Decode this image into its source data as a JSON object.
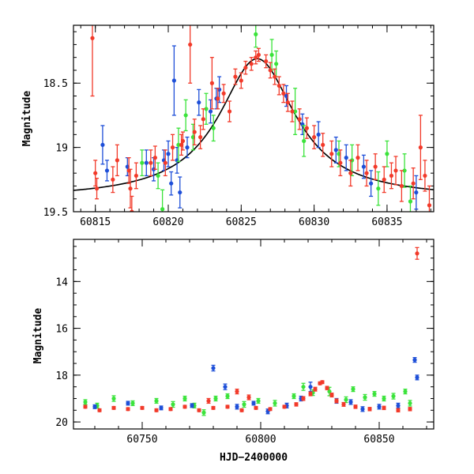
{
  "colors": {
    "blue": "#1e4fd8",
    "green": "#3be33b",
    "red": "#f23a2a",
    "axis": "#000000",
    "model": "#000000"
  },
  "chart_data": [
    {
      "type": "scatter",
      "panel": "top",
      "xlabel": "",
      "ylabel": "Magnitude",
      "xlim": [
        60813.5,
        60838.2
      ],
      "ylim": [
        19.5,
        18.05
      ],
      "y_inverted": true,
      "xticks_major": [
        60815,
        60820,
        60825,
        60830,
        60835
      ],
      "xtick_labels": [
        "60815",
        "60820",
        "60825",
        "60830",
        "60835"
      ],
      "yticks_major": [
        18.5,
        19,
        19.5
      ],
      "ytick_labels": [
        "18.5",
        "19",
        "19.5"
      ],
      "model_curve": {
        "type": "line",
        "peak_x": 60826.1,
        "peak_mag": 18.31,
        "baseline_mag": 19.4,
        "width_days": 3.2
      },
      "series": [
        {
          "color": "blue",
          "points": [
            [
              60815.5,
              18.98,
              0.15
            ],
            [
              60815.8,
              19.18,
              0.08
            ],
            [
              60817.2,
              19.15,
              0.07
            ],
            [
              60818.5,
              19.12,
              0.1
            ],
            [
              60819.0,
              19.17,
              0.09
            ],
            [
              60819.7,
              19.1,
              0.08
            ],
            [
              60820.0,
              19.05,
              0.1
            ],
            [
              60820.2,
              19.28,
              0.09
            ],
            [
              60820.4,
              18.48,
              0.27
            ],
            [
              60820.6,
              19.1,
              0.1
            ],
            [
              60820.8,
              19.35,
              0.12
            ],
            [
              60821.3,
              19.0,
              0.08
            ],
            [
              60822.1,
              18.65,
              0.1
            ],
            [
              60822.9,
              18.72,
              0.09
            ],
            [
              60823.3,
              18.62,
              0.08
            ],
            [
              60823.5,
              18.55,
              0.1
            ],
            [
              60828.1,
              18.6,
              0.08
            ],
            [
              60829.2,
              18.82,
              0.08
            ],
            [
              60830.3,
              18.9,
              0.1
            ],
            [
              60831.5,
              19.02,
              0.1
            ],
            [
              60832.2,
              19.08,
              0.1
            ],
            [
              60833.4,
              19.15,
              0.09
            ],
            [
              60833.9,
              19.28,
              0.1
            ],
            [
              60837.0,
              19.35,
              0.13
            ]
          ]
        },
        {
          "color": "green",
          "points": [
            [
              60818.2,
              19.12,
              0.1
            ],
            [
              60819.3,
              19.22,
              0.1
            ],
            [
              60819.6,
              19.48,
              0.15
            ],
            [
              60820.7,
              18.98,
              0.13
            ],
            [
              60821.2,
              18.75,
              0.12
            ],
            [
              60821.7,
              18.92,
              0.1
            ],
            [
              60822.6,
              18.7,
              0.12
            ],
            [
              60823.1,
              18.85,
              0.1
            ],
            [
              60826.0,
              18.12,
              0.1
            ],
            [
              60827.1,
              18.28,
              0.12
            ],
            [
              60827.4,
              18.35,
              0.1
            ],
            [
              60828.7,
              18.72,
              0.18
            ],
            [
              60829.3,
              18.95,
              0.12
            ],
            [
              60831.7,
              19.05,
              0.1
            ],
            [
              60832.6,
              19.1,
              0.12
            ],
            [
              60834.4,
              19.32,
              0.13
            ],
            [
              60835.0,
              19.05,
              0.1
            ],
            [
              60836.2,
              19.18,
              0.13
            ],
            [
              60836.6,
              19.42,
              0.12
            ]
          ]
        },
        {
          "color": "red",
          "points": [
            [
              60814.8,
              18.15,
              0.45
            ],
            [
              60815.0,
              19.2,
              0.1
            ],
            [
              60815.1,
              19.32,
              0.08
            ],
            [
              60816.2,
              19.25,
              0.1
            ],
            [
              60816.5,
              19.1,
              0.12
            ],
            [
              60817.3,
              19.18,
              0.1
            ],
            [
              60817.4,
              19.32,
              0.15
            ],
            [
              60817.5,
              19.5,
              0.12
            ],
            [
              60817.8,
              19.22,
              0.1
            ],
            [
              60818.8,
              19.12,
              0.1
            ],
            [
              60819.1,
              19.08,
              0.09
            ],
            [
              60819.8,
              19.12,
              0.1
            ],
            [
              60820.3,
              19.0,
              0.1
            ],
            [
              60820.9,
              18.98,
              0.08
            ],
            [
              60821.0,
              18.95,
              0.07
            ],
            [
              60821.5,
              18.2,
              0.3
            ],
            [
              60821.8,
              18.88,
              0.1
            ],
            [
              60822.2,
              18.92,
              0.09
            ],
            [
              60822.4,
              18.78,
              0.08
            ],
            [
              60823.0,
              18.5,
              0.2
            ],
            [
              60823.4,
              18.62,
              0.08
            ],
            [
              60823.8,
              18.58,
              0.07
            ],
            [
              60824.2,
              18.72,
              0.08
            ],
            [
              60824.6,
              18.45,
              0.06
            ],
            [
              60825.0,
              18.48,
              0.06
            ],
            [
              60825.3,
              18.38,
              0.05
            ],
            [
              60825.7,
              18.35,
              0.05
            ],
            [
              60826.0,
              18.3,
              0.05
            ],
            [
              60826.2,
              18.28,
              0.05
            ],
            [
              60826.7,
              18.33,
              0.05
            ],
            [
              60827.0,
              18.4,
              0.06
            ],
            [
              60827.3,
              18.45,
              0.06
            ],
            [
              60827.6,
              18.52,
              0.07
            ],
            [
              60827.9,
              18.58,
              0.07
            ],
            [
              60828.2,
              18.65,
              0.07
            ],
            [
              60828.5,
              18.72,
              0.08
            ],
            [
              60829.0,
              18.78,
              0.08
            ],
            [
              60829.5,
              18.85,
              0.08
            ],
            [
              60830.0,
              18.92,
              0.09
            ],
            [
              60830.6,
              18.98,
              0.09
            ],
            [
              60831.2,
              19.05,
              0.1
            ],
            [
              60831.8,
              19.12,
              0.1
            ],
            [
              60832.5,
              19.2,
              0.1
            ],
            [
              60833.0,
              19.08,
              0.1
            ],
            [
              60833.6,
              19.2,
              0.1
            ],
            [
              60834.2,
              19.15,
              0.1
            ],
            [
              60834.8,
              19.25,
              0.1
            ],
            [
              60835.3,
              19.22,
              0.1
            ],
            [
              60835.6,
              19.18,
              0.11
            ],
            [
              60836.0,
              19.3,
              0.12
            ],
            [
              60836.8,
              19.28,
              0.12
            ],
            [
              60837.3,
              19.0,
              0.25
            ],
            [
              60837.6,
              19.22,
              0.12
            ],
            [
              60837.9,
              19.45,
              0.15
            ]
          ]
        }
      ]
    },
    {
      "type": "scatter",
      "panel": "bottom",
      "xlabel": "HJD−2400000",
      "ylabel": "Magnitude",
      "xlim": [
        60721,
        60873
      ],
      "ylim": [
        20.3,
        12.2
      ],
      "y_inverted": true,
      "xticks_major": [
        60750,
        60800,
        60850
      ],
      "xtick_labels": [
        "60750",
        "60800",
        "60850"
      ],
      "yticks_major": [
        14,
        16,
        18,
        20
      ],
      "ytick_labels": [
        "14",
        "16",
        "18",
        "20"
      ],
      "series": [
        {
          "color": "green",
          "note": "dense baseline",
          "points": [
            [
              60726,
              19.15,
              0.1
            ],
            [
              60731,
              19.3,
              0.1
            ],
            [
              60738,
              19.0,
              0.12
            ],
            [
              60746,
              19.2,
              0.1
            ],
            [
              60756,
              19.1,
              0.1
            ],
            [
              60763,
              19.25,
              0.12
            ],
            [
              60768,
              19.0,
              0.1
            ],
            [
              60772,
              19.3,
              0.1
            ],
            [
              60776,
              19.6,
              0.12
            ],
            [
              60781,
              19.0,
              0.1
            ],
            [
              60786,
              18.9,
              0.1
            ],
            [
              60793,
              19.25,
              0.12
            ],
            [
              60799,
              19.1,
              0.1
            ],
            [
              60806,
              19.2,
              0.12
            ],
            [
              60814,
              18.9,
              0.1
            ],
            [
              60818,
              18.5,
              0.15
            ],
            [
              60822,
              18.75,
              0.12
            ],
            [
              60829,
              18.7,
              0.18
            ],
            [
              60836,
              19.05,
              0.12
            ],
            [
              60839,
              18.6,
              0.1
            ],
            [
              60844,
              18.95,
              0.12
            ],
            [
              60848,
              18.8,
              0.1
            ],
            [
              60852,
              19.0,
              0.1
            ],
            [
              60856,
              18.9,
              0.12
            ],
            [
              60861,
              18.7,
              0.1
            ],
            [
              60863,
              19.2,
              0.12
            ]
          ]
        },
        {
          "color": "blue",
          "points": [
            [
              60730,
              19.35,
              0.08
            ],
            [
              60744,
              19.2,
              0.08
            ],
            [
              60758,
              19.4,
              0.08
            ],
            [
              60771,
              19.3,
              0.08
            ],
            [
              60780,
              17.7,
              0.12
            ],
            [
              60785,
              18.5,
              0.12
            ],
            [
              60790,
              19.35,
              0.1
            ],
            [
              60797,
              19.2,
              0.08
            ],
            [
              60803,
              19.55,
              0.1
            ],
            [
              60811,
              19.3,
              0.1
            ],
            [
              60817,
              19.0,
              0.1
            ],
            [
              60821,
              18.5,
              0.2
            ],
            [
              60832,
              19.1,
              0.1
            ],
            [
              60838,
              19.15,
              0.1
            ],
            [
              60843,
              19.45,
              0.1
            ],
            [
              60850,
              19.35,
              0.1
            ],
            [
              60858,
              19.3,
              0.1
            ],
            [
              60865,
              17.35,
              0.1
            ],
            [
              60866,
              18.1,
              0.1
            ]
          ]
        },
        {
          "color": "red",
          "points": [
            [
              60726,
              19.35,
              0.06
            ],
            [
              60732,
              19.5,
              0.06
            ],
            [
              60738,
              19.4,
              0.06
            ],
            [
              60744,
              19.45,
              0.06
            ],
            [
              60750,
              19.4,
              0.06
            ],
            [
              60756,
              19.5,
              0.06
            ],
            [
              60762,
              19.45,
              0.06
            ],
            [
              60768,
              19.35,
              0.06
            ],
            [
              60774,
              19.5,
              0.06
            ],
            [
              60780,
              19.4,
              0.06
            ],
            [
              60786,
              19.35,
              0.06
            ],
            [
              60792,
              19.5,
              0.06
            ],
            [
              60798,
              19.4,
              0.06
            ],
            [
              60804,
              19.45,
              0.06
            ],
            [
              60810,
              19.35,
              0.06
            ],
            [
              60815,
              19.25,
              0.07
            ],
            [
              60818,
              19.0,
              0.08
            ],
            [
              60821,
              18.8,
              0.08
            ],
            [
              60823,
              18.6,
              0.08
            ],
            [
              60825,
              18.35,
              0.06
            ],
            [
              60826,
              18.3,
              0.06
            ],
            [
              60828,
              18.55,
              0.07
            ],
            [
              60830,
              18.85,
              0.08
            ],
            [
              60832,
              19.1,
              0.08
            ],
            [
              60835,
              19.25,
              0.08
            ],
            [
              60840,
              19.35,
              0.07
            ],
            [
              60846,
              19.45,
              0.07
            ],
            [
              60852,
              19.4,
              0.07
            ],
            [
              60858,
              19.5,
              0.07
            ],
            [
              60863,
              19.45,
              0.07
            ],
            [
              60866,
              12.8,
              0.25
            ],
            [
              60778,
              19.1,
              0.1
            ],
            [
              60795,
              18.95,
              0.1
            ],
            [
              60790,
              18.7,
              0.1
            ]
          ]
        }
      ]
    }
  ]
}
